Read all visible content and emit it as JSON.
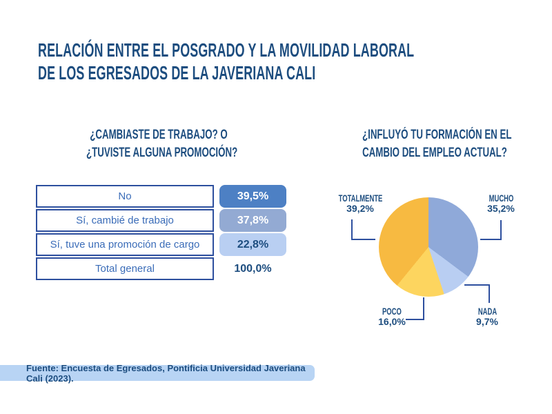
{
  "title": {
    "line1": "RELACIÓN ENTRE EL POSGRADO Y LA MOVILIDAD LABORAL",
    "line2": "DE LOS EGRESADOS DE LA JAVERIANA CALI"
  },
  "left_panel": {
    "heading_line1": "¿CAMBIASTE DE TRABAJO? O",
    "heading_line2": "¿TUVISTE ALGUNA PROMOCIÓN?"
  },
  "right_panel": {
    "heading_line1": "¿INFLUYÓ TU FORMACIÓN EN EL",
    "heading_line2": "CAMBIO DEL EMPLEO ACTUAL?"
  },
  "source_bar": {
    "text": "Fuente: Encuesta de Egresados, Pontificia Universidad Javeriana Cali (2023)."
  },
  "colors": {
    "navy_text": "#1d4d7f",
    "table_border": "#2d4f9e",
    "table_label_text": "#3a6cb8",
    "source_bar_bg": "#b8d4f4"
  },
  "chart_data": [
    {
      "type": "table",
      "title": "¿CAMBIASTE DE TRABAJO? O ¿TUVISTE ALGUNA PROMOCIÓN?",
      "rows": [
        {
          "label": "No",
          "value": "39,5%",
          "badge_bg": "#4d80c4",
          "badge_fg": "#ffffff"
        },
        {
          "label": "Sí, cambié de trabajo",
          "value": "37,8%",
          "badge_bg": "#93aad3",
          "badge_fg": "#ffffff"
        },
        {
          "label": "Sí, tuve una promoción de cargo",
          "value": "22,8%",
          "badge_bg": "#b9cff2",
          "badge_fg": "#1d4d7f"
        },
        {
          "label": "Total general",
          "value": "100,0%",
          "badge_bg": null,
          "badge_fg": "#1d4d7f"
        }
      ]
    },
    {
      "type": "pie",
      "title": "¿INFLUYÓ TU FORMACIÓN EN EL CAMBIO DEL EMPLEO ACTUAL?",
      "start_angle_deg": 0,
      "direction": "clockwise",
      "legend_position": "callout-labels",
      "slices": [
        {
          "label": "MUCHO",
          "value": 35.2,
          "display": "35,2%",
          "color": "#8fa9d9"
        },
        {
          "label": "NADA",
          "value": 9.7,
          "display": "9,7%",
          "color": "#b9cef2"
        },
        {
          "label": "POCO",
          "value": 16.0,
          "display": "16,0%",
          "color": "#fdd55f"
        },
        {
          "label": "TOTALMENTE",
          "value": 39.2,
          "display": "39,2%",
          "color": "#f7ba41"
        }
      ]
    }
  ]
}
